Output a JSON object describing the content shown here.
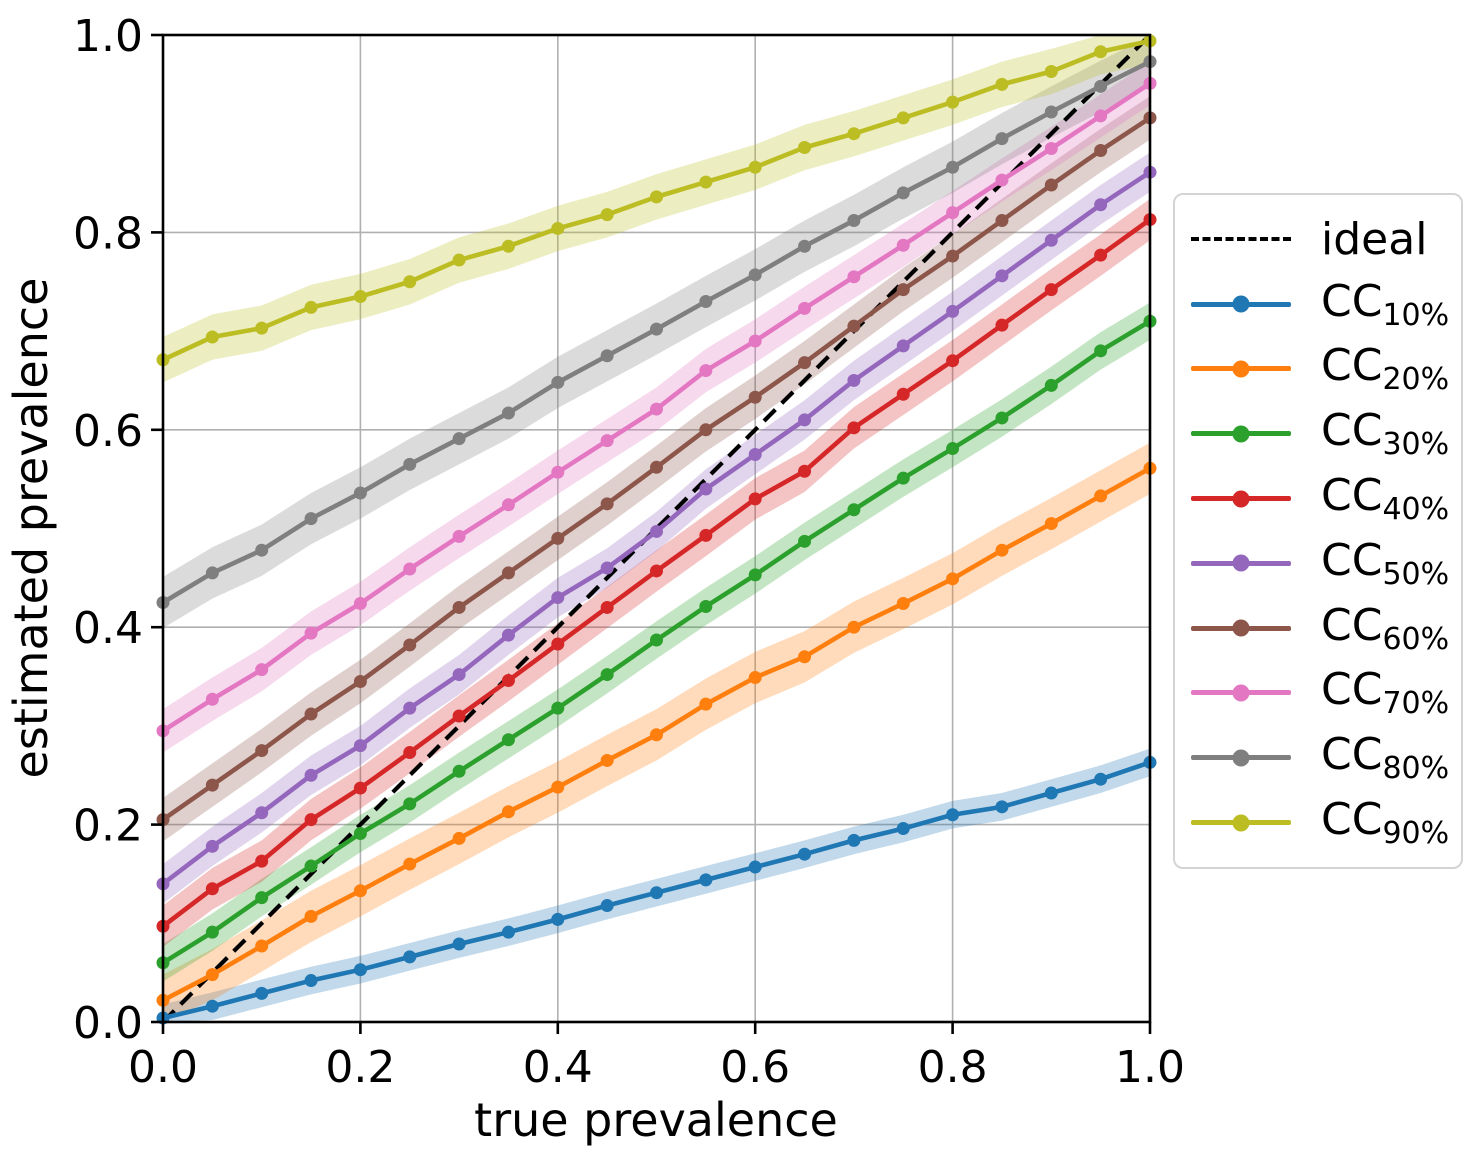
{
  "figure": {
    "xlabel": "true prevalence",
    "ylabel": "estimated prevalence",
    "background": "#ffffff",
    "grid_color": "#b0b0b0",
    "spine_color": "#000000"
  },
  "legend": {
    "position": "right-outside",
    "ideal_label": "ideal"
  },
  "chart_data": {
    "type": "line",
    "title": "",
    "xlabel": "true prevalence",
    "ylabel": "estimated prevalence",
    "xlim": [
      0.0,
      1.0
    ],
    "ylim": [
      0.0,
      1.0
    ],
    "grid": true,
    "legend_position": "center right outside",
    "tick_values": [
      0.0,
      0.2,
      0.4,
      0.6,
      0.8,
      1.0
    ],
    "tick_labels": [
      "0.0",
      "0.2",
      "0.4",
      "0.6",
      "0.8",
      "1.0"
    ],
    "x": [
      0.0,
      0.05,
      0.1,
      0.15,
      0.2,
      0.25,
      0.3,
      0.35,
      0.4,
      0.45,
      0.5,
      0.55,
      0.6,
      0.65,
      0.7,
      0.75,
      0.8,
      0.85,
      0.9,
      0.95,
      1.0
    ],
    "ideal": {
      "label": "ideal",
      "color": "#000000",
      "style": "dashed",
      "x": [
        0.0,
        1.0
      ],
      "y": [
        0.0,
        1.0
      ]
    },
    "series": [
      {
        "name": "CC",
        "sub": "10%",
        "label": "CC10%",
        "color": "#1f77b4",
        "band_halfwidth": 0.014,
        "values": [
          0.004,
          0.016,
          0.029,
          0.042,
          0.053,
          0.066,
          0.079,
          0.091,
          0.104,
          0.118,
          0.131,
          0.144,
          0.157,
          0.17,
          0.184,
          0.196,
          0.21,
          0.218,
          0.232,
          0.246,
          0.263
        ]
      },
      {
        "name": "CC",
        "sub": "20%",
        "label": "CC20%",
        "color": "#ff7f0e",
        "band_halfwidth": 0.026,
        "values": [
          0.022,
          0.048,
          0.077,
          0.107,
          0.133,
          0.16,
          0.186,
          0.213,
          0.238,
          0.265,
          0.291,
          0.322,
          0.349,
          0.37,
          0.4,
          0.424,
          0.449,
          0.478,
          0.505,
          0.533,
          0.561
        ]
      },
      {
        "name": "CC",
        "sub": "30%",
        "label": "CC30%",
        "color": "#2ca02c",
        "band_halfwidth": 0.019,
        "values": [
          0.06,
          0.091,
          0.126,
          0.158,
          0.191,
          0.221,
          0.254,
          0.286,
          0.318,
          0.352,
          0.387,
          0.421,
          0.453,
          0.487,
          0.519,
          0.551,
          0.581,
          0.612,
          0.645,
          0.68,
          0.71
        ]
      },
      {
        "name": "CC",
        "sub": "40%",
        "label": "CC40%",
        "color": "#d62728",
        "band_halfwidth": 0.021,
        "values": [
          0.097,
          0.135,
          0.163,
          0.205,
          0.237,
          0.273,
          0.31,
          0.346,
          0.383,
          0.42,
          0.457,
          0.493,
          0.53,
          0.558,
          0.602,
          0.636,
          0.67,
          0.706,
          0.742,
          0.777,
          0.813
        ]
      },
      {
        "name": "CC",
        "sub": "50%",
        "label": "CC50%",
        "color": "#9467bd",
        "band_halfwidth": 0.02,
        "values": [
          0.14,
          0.178,
          0.212,
          0.25,
          0.28,
          0.318,
          0.352,
          0.392,
          0.43,
          0.46,
          0.497,
          0.54,
          0.575,
          0.61,
          0.65,
          0.685,
          0.72,
          0.756,
          0.792,
          0.828,
          0.861
        ]
      },
      {
        "name": "CC",
        "sub": "60%",
        "label": "CC60%",
        "color": "#8c564b",
        "band_halfwidth": 0.022,
        "values": [
          0.205,
          0.24,
          0.275,
          0.312,
          0.345,
          0.382,
          0.42,
          0.455,
          0.49,
          0.525,
          0.562,
          0.6,
          0.633,
          0.668,
          0.705,
          0.742,
          0.776,
          0.812,
          0.848,
          0.883,
          0.916
        ]
      },
      {
        "name": "CC",
        "sub": "70%",
        "label": "CC70%",
        "color": "#e377c2",
        "band_halfwidth": 0.022,
        "values": [
          0.295,
          0.327,
          0.357,
          0.394,
          0.424,
          0.459,
          0.492,
          0.524,
          0.557,
          0.589,
          0.621,
          0.66,
          0.69,
          0.723,
          0.755,
          0.787,
          0.82,
          0.853,
          0.885,
          0.918,
          0.951
        ]
      },
      {
        "name": "CC",
        "sub": "80%",
        "label": "CC80%",
        "color": "#7f7f7f",
        "band_halfwidth": 0.026,
        "values": [
          0.425,
          0.455,
          0.478,
          0.51,
          0.536,
          0.565,
          0.591,
          0.617,
          0.648,
          0.675,
          0.702,
          0.73,
          0.757,
          0.786,
          0.812,
          0.84,
          0.866,
          0.895,
          0.922,
          0.948,
          0.973
        ]
      },
      {
        "name": "CC",
        "sub": "90%",
        "label": "CC90%",
        "color": "#bcbd22",
        "band_halfwidth": 0.023,
        "values": [
          0.671,
          0.694,
          0.703,
          0.724,
          0.735,
          0.75,
          0.772,
          0.786,
          0.804,
          0.818,
          0.836,
          0.851,
          0.866,
          0.886,
          0.9,
          0.916,
          0.932,
          0.95,
          0.963,
          0.983,
          0.994
        ]
      }
    ]
  }
}
